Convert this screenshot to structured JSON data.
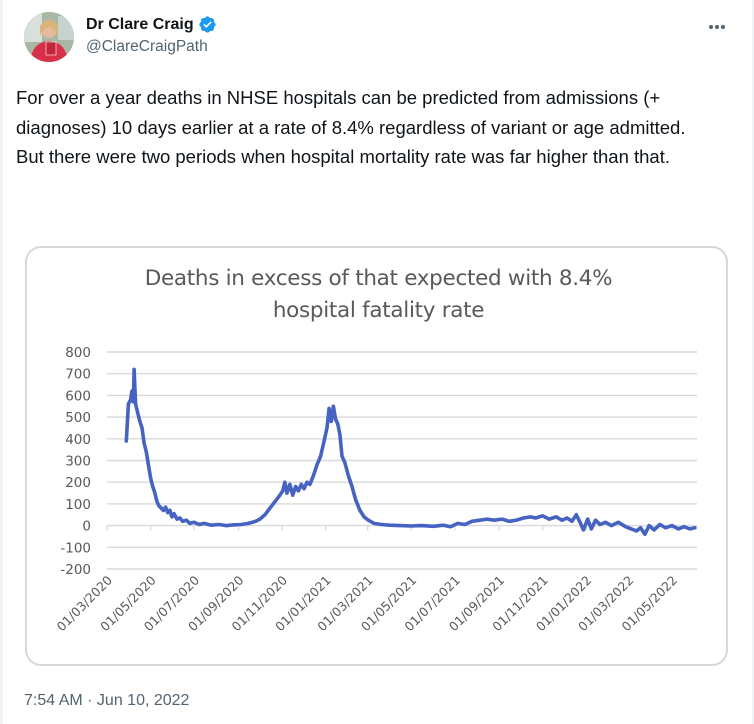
{
  "author": {
    "name": "Dr Clare Craig",
    "handle": "@ClareCraigPath",
    "verified": true,
    "avatar": "avatar-photo",
    "verified_color": "#1d9bf0"
  },
  "more_icon": "more-options-icon",
  "tweet_text": "For over a year deaths in NHSE hospitals can be predicted from admissions (+ diagnoses) 10 days earlier at a rate of 8.4% regardless of variant or age admitted.\nBut there were two periods when hospital mortality rate was far higher than that.",
  "timestamp": "7:54 AM · Jun 10, 2022",
  "chart_data": {
    "type": "line",
    "title_line1": "Deaths in excess of that expected with 8.4%",
    "title_line2": "hospital fatality rate",
    "xlabel": "",
    "ylabel": "",
    "ylim": [
      -200,
      800
    ],
    "yticks": [
      "800",
      "700",
      "600",
      "500",
      "400",
      "300",
      "200",
      "100",
      "0",
      "-100",
      "-200"
    ],
    "ytick_values": [
      800,
      700,
      600,
      500,
      400,
      300,
      200,
      100,
      0,
      -100,
      -200
    ],
    "xlim": [
      "2020-03-01",
      "2022-06-05"
    ],
    "xtick_labels": [
      "01/03/2020",
      "01/05/2020",
      "01/07/2020",
      "01/09/2020",
      "01/11/2020",
      "01/01/2021",
      "01/03/2021",
      "01/05/2021",
      "01/07/2021",
      "01/09/2021",
      "01/11/2021",
      "01/01/2022",
      "01/03/2022",
      "01/05/2022"
    ],
    "xtick_dates": [
      "2020-03-01",
      "2020-05-01",
      "2020-07-01",
      "2020-09-01",
      "2020-11-01",
      "2021-01-01",
      "2021-03-01",
      "2021-05-01",
      "2021-07-01",
      "2021-09-01",
      "2021-11-01",
      "2022-01-01",
      "2022-03-01",
      "2022-05-01"
    ],
    "grid": true,
    "line_color": "#4763c2",
    "grid_color": "#d9d9d9",
    "series": [
      {
        "name": "Excess deaths",
        "points": [
          [
            "2020-03-28",
            390
          ],
          [
            "2020-03-31",
            560
          ],
          [
            "2020-04-03",
            580
          ],
          [
            "2020-04-05",
            620
          ],
          [
            "2020-04-07",
            570
          ],
          [
            "2020-04-08",
            720
          ],
          [
            "2020-04-10",
            560
          ],
          [
            "2020-04-13",
            520
          ],
          [
            "2020-04-16",
            480
          ],
          [
            "2020-04-19",
            450
          ],
          [
            "2020-04-22",
            380
          ],
          [
            "2020-04-25",
            340
          ],
          [
            "2020-04-28",
            280
          ],
          [
            "2020-05-01",
            220
          ],
          [
            "2020-05-04",
            180
          ],
          [
            "2020-05-07",
            150
          ],
          [
            "2020-05-10",
            110
          ],
          [
            "2020-05-13",
            90
          ],
          [
            "2020-05-16",
            80
          ],
          [
            "2020-05-19",
            70
          ],
          [
            "2020-05-22",
            85
          ],
          [
            "2020-05-25",
            60
          ],
          [
            "2020-05-28",
            70
          ],
          [
            "2020-05-31",
            40
          ],
          [
            "2020-06-03",
            55
          ],
          [
            "2020-06-07",
            30
          ],
          [
            "2020-06-11",
            35
          ],
          [
            "2020-06-15",
            20
          ],
          [
            "2020-06-20",
            25
          ],
          [
            "2020-06-25",
            10
          ],
          [
            "2020-07-01",
            15
          ],
          [
            "2020-07-08",
            5
          ],
          [
            "2020-07-15",
            10
          ],
          [
            "2020-07-25",
            2
          ],
          [
            "2020-08-05",
            5
          ],
          [
            "2020-08-15",
            0
          ],
          [
            "2020-08-25",
            3
          ],
          [
            "2020-09-05",
            5
          ],
          [
            "2020-09-15",
            10
          ],
          [
            "2020-09-25",
            20
          ],
          [
            "2020-10-01",
            30
          ],
          [
            "2020-10-08",
            50
          ],
          [
            "2020-10-15",
            80
          ],
          [
            "2020-10-22",
            110
          ],
          [
            "2020-10-29",
            140
          ],
          [
            "2020-11-02",
            160
          ],
          [
            "2020-11-05",
            200
          ],
          [
            "2020-11-08",
            150
          ],
          [
            "2020-11-12",
            190
          ],
          [
            "2020-11-16",
            140
          ],
          [
            "2020-11-20",
            180
          ],
          [
            "2020-11-24",
            160
          ],
          [
            "2020-11-28",
            190
          ],
          [
            "2020-12-02",
            170
          ],
          [
            "2020-12-06",
            200
          ],
          [
            "2020-12-10",
            190
          ],
          [
            "2020-12-15",
            230
          ],
          [
            "2020-12-20",
            280
          ],
          [
            "2020-12-25",
            320
          ],
          [
            "2020-12-30",
            390
          ],
          [
            "2021-01-03",
            450
          ],
          [
            "2021-01-06",
            540
          ],
          [
            "2021-01-09",
            480
          ],
          [
            "2021-01-12",
            550
          ],
          [
            "2021-01-15",
            490
          ],
          [
            "2021-01-18",
            470
          ],
          [
            "2021-01-21",
            420
          ],
          [
            "2021-01-24",
            320
          ],
          [
            "2021-01-28",
            290
          ],
          [
            "2021-02-02",
            230
          ],
          [
            "2021-02-07",
            180
          ],
          [
            "2021-02-12",
            120
          ],
          [
            "2021-02-18",
            70
          ],
          [
            "2021-02-24",
            40
          ],
          [
            "2021-03-02",
            25
          ],
          [
            "2021-03-10",
            10
          ],
          [
            "2021-03-20",
            5
          ],
          [
            "2021-04-01",
            2
          ],
          [
            "2021-04-15",
            0
          ],
          [
            "2021-05-01",
            -2
          ],
          [
            "2021-05-15",
            0
          ],
          [
            "2021-06-01",
            -3
          ],
          [
            "2021-06-15",
            2
          ],
          [
            "2021-06-25",
            -5
          ],
          [
            "2021-07-05",
            10
          ],
          [
            "2021-07-15",
            5
          ],
          [
            "2021-07-25",
            20
          ],
          [
            "2021-08-05",
            25
          ],
          [
            "2021-08-15",
            30
          ],
          [
            "2021-08-25",
            25
          ],
          [
            "2021-09-05",
            30
          ],
          [
            "2021-09-15",
            20
          ],
          [
            "2021-09-25",
            25
          ],
          [
            "2021-10-05",
            35
          ],
          [
            "2021-10-15",
            40
          ],
          [
            "2021-10-22",
            35
          ],
          [
            "2021-11-01",
            45
          ],
          [
            "2021-11-10",
            30
          ],
          [
            "2021-11-20",
            40
          ],
          [
            "2021-11-28",
            25
          ],
          [
            "2021-12-05",
            35
          ],
          [
            "2021-12-12",
            20
          ],
          [
            "2021-12-18",
            50
          ],
          [
            "2021-12-24",
            10
          ],
          [
            "2021-12-28",
            -20
          ],
          [
            "2022-01-03",
            30
          ],
          [
            "2022-01-08",
            -15
          ],
          [
            "2022-01-14",
            25
          ],
          [
            "2022-01-20",
            5
          ],
          [
            "2022-01-28",
            15
          ],
          [
            "2022-02-05",
            0
          ],
          [
            "2022-02-15",
            15
          ],
          [
            "2022-02-25",
            -5
          ],
          [
            "2022-03-05",
            -15
          ],
          [
            "2022-03-12",
            -25
          ],
          [
            "2022-03-18",
            -10
          ],
          [
            "2022-03-24",
            -40
          ],
          [
            "2022-03-30",
            0
          ],
          [
            "2022-04-06",
            -20
          ],
          [
            "2022-04-14",
            5
          ],
          [
            "2022-04-22",
            -10
          ],
          [
            "2022-05-01",
            0
          ],
          [
            "2022-05-10",
            -15
          ],
          [
            "2022-05-18",
            -5
          ],
          [
            "2022-05-26",
            -15
          ],
          [
            "2022-06-02",
            -10
          ]
        ]
      }
    ]
  }
}
